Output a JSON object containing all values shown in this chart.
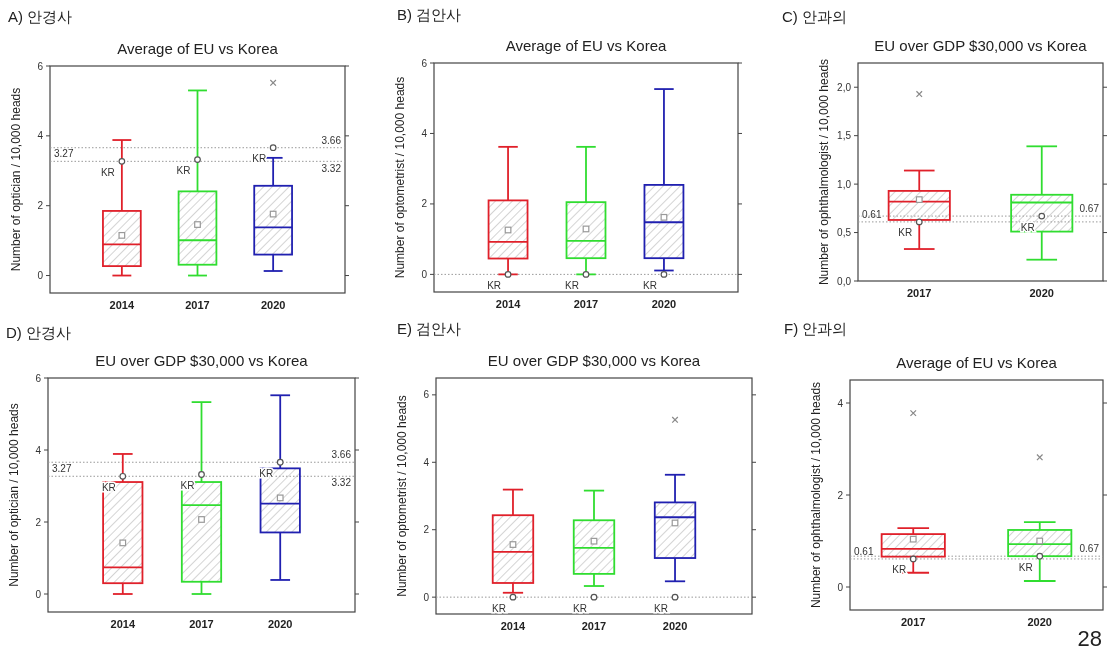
{
  "chart_data": [
    {
      "type": "box",
      "title": "A) 안경사",
      "subtitle": "Average of EU vs Korea",
      "ylabel": "Number of optician / 10,000 heads",
      "categories": [
        "2014",
        "2017",
        "2020"
      ],
      "colors": [
        "#e0202a",
        "#30dd30",
        "#2020b0"
      ],
      "ylim": [
        -0.5,
        6
      ],
      "yticks": [
        0,
        2,
        4,
        6
      ],
      "grid": false,
      "boxes": [
        {
          "low": 0,
          "q1": 0.27,
          "median": 0.89,
          "q3": 1.85,
          "high": 3.88,
          "mean": 1.15
        },
        {
          "low": 0,
          "q1": 0.31,
          "median": 1.01,
          "q3": 2.41,
          "high": 5.3,
          "mean": 1.46
        },
        {
          "low": 0.13,
          "q1": 0.6,
          "median": 1.38,
          "q3": 2.57,
          "high": 3.37,
          "mean": 1.76,
          "outliers": [
            5.52
          ]
        }
      ],
      "series": [
        {
          "type": "scatter",
          "name": "KR",
          "values": [
            3.27,
            3.32,
            3.66
          ],
          "color": "#555555",
          "marker": "circle"
        }
      ],
      "ref_lines": [
        {
          "axis": "y",
          "value": 3.27,
          "label": "3.27",
          "line_style": "dotted",
          "color": "#999999"
        },
        {
          "axis": "y",
          "value": 3.66,
          "label": "3.66",
          "line_style": "dotted",
          "color": "#999999"
        }
      ],
      "annotations": [
        {
          "text": "3.32",
          "y": 3.32
        }
      ]
    },
    {
      "type": "box",
      "title": "B) 검안사",
      "subtitle": "Average of EU vs Korea",
      "ylabel": "Number of optometrist / 10,000 heads",
      "categories": [
        "2014",
        "2017",
        "2020"
      ],
      "colors": [
        "#e0202a",
        "#30dd30",
        "#2020b0"
      ],
      "ylim": [
        -0.5,
        6
      ],
      "yticks": [
        0,
        2,
        4,
        6
      ],
      "grid": false,
      "boxes": [
        {
          "low": 0,
          "q1": 0.45,
          "median": 0.92,
          "q3": 2.1,
          "high": 3.62,
          "mean": 1.26
        },
        {
          "low": 0,
          "q1": 0.46,
          "median": 0.95,
          "q3": 2.05,
          "high": 3.62,
          "mean": 1.29
        },
        {
          "low": 0.11,
          "q1": 0.46,
          "median": 1.48,
          "q3": 2.54,
          "high": 5.26,
          "mean": 1.62
        }
      ],
      "series": [
        {
          "type": "scatter",
          "name": "KR",
          "values": [
            0,
            0,
            0
          ],
          "color": "#555555",
          "marker": "circle"
        }
      ],
      "ref_lines": [
        {
          "axis": "y",
          "value": 0,
          "line_style": "dotted",
          "color": "#999999"
        }
      ]
    },
    {
      "type": "box",
      "title": "C) 안과의",
      "subtitle": "EU over GDP $30,000 vs Korea",
      "ylabel": "Number of ophthalmologist / 10,000 heads",
      "categories": [
        "2017",
        "2020"
      ],
      "colors": [
        "#e0202a",
        "#30dd30"
      ],
      "ylim": [
        0,
        2.25
      ],
      "yticks": [
        {
          "value": 0,
          "label": "0,0"
        },
        {
          "value": 0.5,
          "label": "0,5"
        },
        {
          "value": 1,
          "label": "1,0"
        },
        {
          "value": 1.5,
          "label": "1,5"
        },
        {
          "value": 2,
          "label": "2,0"
        }
      ],
      "grid": false,
      "boxes": [
        {
          "low": 0.33,
          "q1": 0.63,
          "median": 0.82,
          "q3": 0.93,
          "high": 1.14,
          "mean": 0.84,
          "outliers": [
            1.93
          ]
        },
        {
          "low": 0.22,
          "q1": 0.51,
          "median": 0.81,
          "q3": 0.89,
          "high": 1.39
        }
      ],
      "series": [
        {
          "type": "scatter",
          "name": "KR",
          "values": [
            0.61,
            0.67
          ],
          "color": "#555555",
          "marker": "circle"
        }
      ],
      "ref_lines": [
        {
          "axis": "y",
          "value": 0.61,
          "label": "0.61",
          "line_style": "dotted",
          "color": "#999999"
        },
        {
          "axis": "y",
          "value": 0.67,
          "label": "0.67",
          "line_style": "dotted",
          "color": "#999999"
        }
      ]
    },
    {
      "type": "box",
      "title": "D) 안경사",
      "subtitle": "EU over GDP $30,000 vs Korea",
      "ylabel": "Number of optician / 10,000 heads",
      "categories": [
        "2014",
        "2017",
        "2020"
      ],
      "colors": [
        "#e0202a",
        "#30dd30",
        "#2020b0"
      ],
      "ylim": [
        -0.5,
        6
      ],
      "yticks": [
        0,
        2,
        4,
        6
      ],
      "grid": false,
      "boxes": [
        {
          "low": 0,
          "q1": 0.3,
          "median": 0.74,
          "q3": 3.11,
          "high": 3.89,
          "mean": 1.42
        },
        {
          "low": 0,
          "q1": 0.34,
          "median": 2.47,
          "q3": 3.11,
          "high": 5.33,
          "mean": 2.07
        },
        {
          "low": 0.39,
          "q1": 1.71,
          "median": 2.51,
          "q3": 3.49,
          "high": 5.52,
          "mean": 2.67
        }
      ],
      "series": [
        {
          "type": "scatter",
          "name": "KR",
          "values": [
            3.27,
            3.32,
            3.66
          ],
          "color": "#555555",
          "marker": "circle"
        }
      ],
      "ref_lines": [
        {
          "axis": "y",
          "value": 3.27,
          "label": "3.27",
          "line_style": "dotted",
          "color": "#999999"
        },
        {
          "axis": "y",
          "value": 3.66,
          "label": "3.66",
          "line_style": "dotted",
          "color": "#999999"
        }
      ],
      "annotations": [
        {
          "text": "3.32",
          "y": 3.32
        }
      ]
    },
    {
      "type": "box",
      "title": "E) 검안사",
      "subtitle": "EU over GDP $30,000 vs Korea",
      "ylabel": "Number of optometrist / 10,000 heads",
      "categories": [
        "2014",
        "2017",
        "2020"
      ],
      "colors": [
        "#e0202a",
        "#30dd30",
        "#2020b0"
      ],
      "ylim": [
        -0.5,
        6.5
      ],
      "yticks": [
        0,
        2,
        4,
        6
      ],
      "grid": false,
      "boxes": [
        {
          "low": 0.13,
          "q1": 0.42,
          "median": 1.34,
          "q3": 2.43,
          "high": 3.19,
          "mean": 1.56
        },
        {
          "low": 0.33,
          "q1": 0.69,
          "median": 1.46,
          "q3": 2.28,
          "high": 3.16,
          "mean": 1.66
        },
        {
          "low": 0.47,
          "q1": 1.16,
          "median": 2.37,
          "q3": 2.81,
          "high": 3.63,
          "mean": 2.2,
          "outliers": [
            5.26
          ]
        }
      ],
      "series": [
        {
          "type": "scatter",
          "name": "KR",
          "values": [
            0,
            0,
            0
          ],
          "color": "#555555",
          "marker": "circle"
        }
      ],
      "ref_lines": [
        {
          "axis": "y",
          "value": 0,
          "line_style": "dotted",
          "color": "#999999"
        }
      ]
    },
    {
      "type": "box",
      "title": "F) 안과의",
      "subtitle": "Average of EU vs Korea",
      "ylabel": "Number of ophthalmologist / 10,000 heads",
      "categories": [
        "2017",
        "2020"
      ],
      "colors": [
        "#e0202a",
        "#30dd30"
      ],
      "ylim": [
        -0.5,
        4.5
      ],
      "yticks": [
        0,
        2,
        4
      ],
      "grid": false,
      "boxes": [
        {
          "low": 0.31,
          "q1": 0.66,
          "median": 0.83,
          "q3": 1.15,
          "high": 1.28,
          "mean": 1.04,
          "outliers": [
            3.78
          ]
        },
        {
          "low": 0.13,
          "q1": 0.67,
          "median": 0.93,
          "q3": 1.24,
          "high": 1.41,
          "mean": 1.0,
          "outliers": [
            2.82
          ]
        }
      ],
      "series": [
        {
          "type": "scatter",
          "name": "KR",
          "values": [
            0.61,
            0.67
          ],
          "color": "#555555",
          "marker": "circle"
        }
      ],
      "ref_lines": [
        {
          "axis": "y",
          "value": 0.61,
          "label": "0.61",
          "line_style": "dotted",
          "color": "#999999"
        },
        {
          "axis": "y",
          "value": 0.67,
          "label": "0.67",
          "line_style": "dotted",
          "color": "#999999"
        }
      ],
      "annotations": [
        "28"
      ]
    }
  ]
}
